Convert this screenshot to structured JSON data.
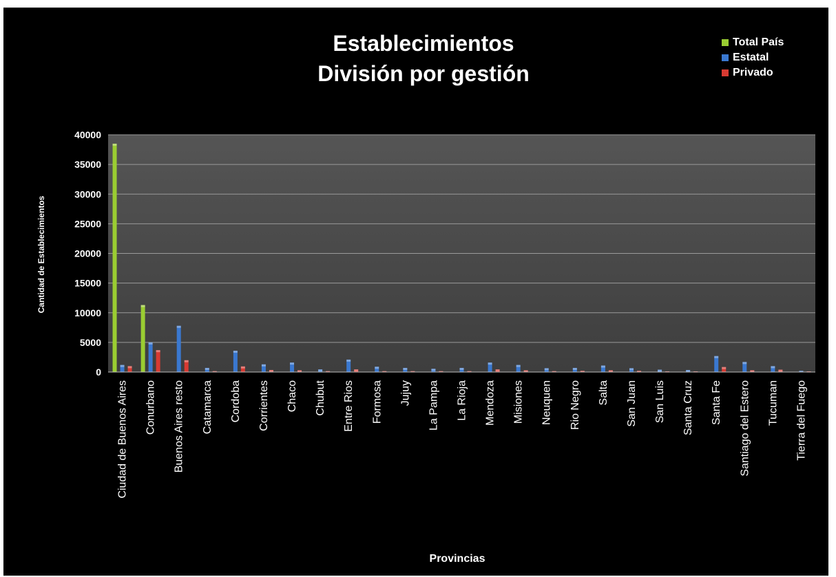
{
  "chart_data": {
    "type": "bar",
    "title": "Establecimientos",
    "subtitle": "División por gestión",
    "xlabel": "Provincias",
    "ylabel": "Cantidad de Establecimientos",
    "ylim": [
      0,
      40000
    ],
    "yticks": [
      "0",
      "5000",
      "10000",
      "15000",
      "20000",
      "25000",
      "30000",
      "35000",
      "40000"
    ],
    "grid": true,
    "legend_position": "top-right",
    "categories": [
      "Ciudad de Buenos Aires",
      "Conurbano",
      "Buenos Aires resto",
      "Catamarca",
      "Cordoba",
      "Corrientes",
      "Chaco",
      "Chubut",
      "Entre Rios",
      "Formosa",
      "Jujuy",
      "La Pampa",
      "La Rioja",
      "Mendoza",
      "Misiones",
      "Neuquen",
      "Rio Negro",
      "Salta",
      "San Juan",
      "San Luis",
      "Santa Cruz",
      "Santa Fe",
      "Santiago del Estero",
      "Tucuman",
      "Tierra del Fuego"
    ],
    "series": [
      {
        "name": "Total País",
        "color": "#9acd32",
        "values": [
          38500,
          11300,
          null,
          null,
          null,
          null,
          null,
          null,
          null,
          null,
          null,
          null,
          null,
          null,
          null,
          null,
          null,
          null,
          null,
          null,
          null,
          null,
          null,
          null,
          null
        ]
      },
      {
        "name": "Estatal",
        "color": "#3a78d0",
        "values": [
          1200,
          5000,
          7800,
          700,
          3600,
          1300,
          1600,
          450,
          2100,
          900,
          700,
          550,
          700,
          1600,
          1200,
          650,
          700,
          1100,
          650,
          400,
          350,
          2700,
          1700,
          1000,
          200
        ]
      },
      {
        "name": "Privado",
        "color": "#d83a32",
        "values": [
          1000,
          3700,
          2000,
          150,
          950,
          350,
          300,
          150,
          450,
          150,
          150,
          150,
          150,
          450,
          300,
          150,
          200,
          300,
          200,
          100,
          100,
          850,
          300,
          400,
          80
        ]
      }
    ]
  }
}
